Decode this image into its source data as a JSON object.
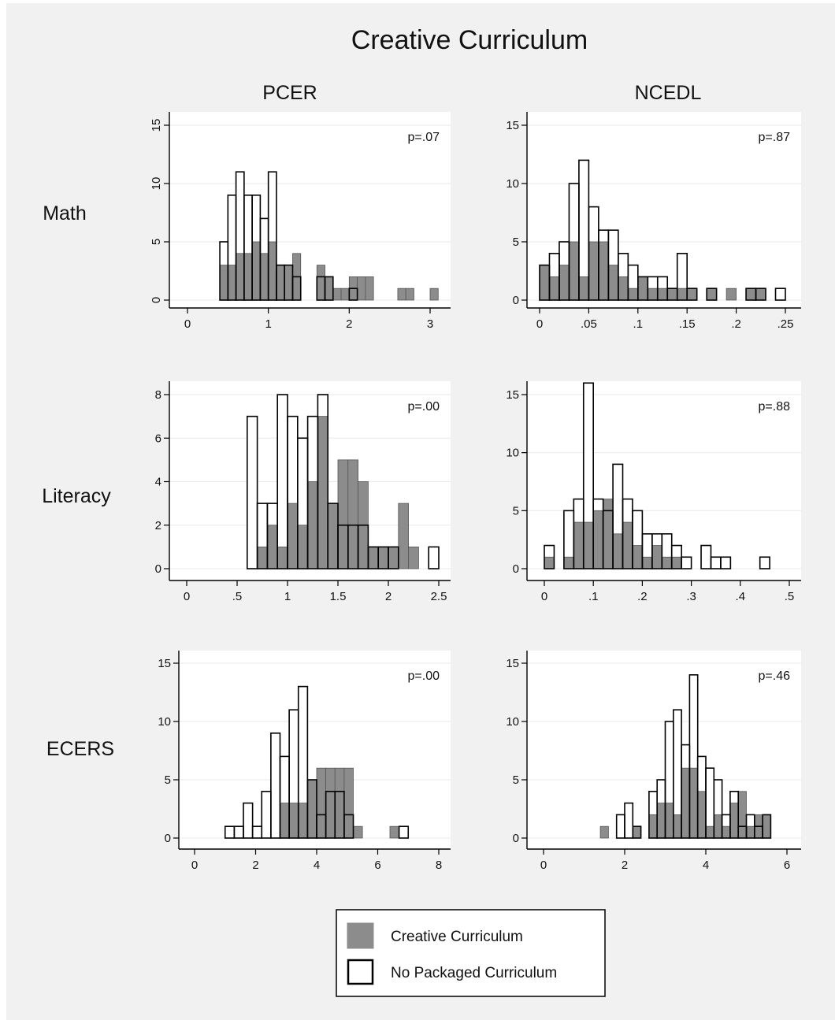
{
  "title": "Creative Curriculum",
  "column_titles": [
    "PCER",
    "NCEDL"
  ],
  "row_labels": [
    "Math",
    "Literacy",
    "ECERS"
  ],
  "colors": {
    "creative": "#8c8c8c",
    "none": "#ffffff",
    "edge": "#000000",
    "plot_bg": "#ffffff"
  },
  "legend": {
    "entries": [
      "Creative Curriculum",
      "No Packaged Curriculum"
    ],
    "position": "bottom-center"
  },
  "chart_data": [
    {
      "type": "bar",
      "row": "Math",
      "column": "PCER",
      "annotation": "p=.07",
      "xlim": [
        0,
        3.1
      ],
      "ylim": [
        0,
        15
      ],
      "y_ticks": [
        0,
        5,
        10,
        15
      ],
      "y_tick_rotated": true,
      "x_ticks": [
        0,
        1,
        2,
        3
      ],
      "x_tick_labels": [
        "0",
        "1",
        "2",
        "3"
      ],
      "bin_width": 0.1,
      "series": [
        {
          "name": "Creative Curriculum",
          "x": [
            0.45,
            0.55,
            0.65,
            0.75,
            0.85,
            0.95,
            1.05,
            1.15,
            1.25,
            1.35,
            1.65,
            1.75,
            1.85,
            1.95,
            2.05,
            2.15,
            2.25,
            2.65,
            2.75,
            3.05
          ],
          "values": [
            3,
            3,
            4,
            4,
            5,
            4,
            5,
            3,
            3,
            4,
            3,
            2,
            1,
            1,
            2,
            2,
            2,
            1,
            1,
            1
          ]
        },
        {
          "name": "No Packaged Curriculum",
          "x": [
            0.45,
            0.55,
            0.65,
            0.75,
            0.85,
            0.95,
            1.05,
            1.15,
            1.25,
            1.35,
            1.65,
            1.75,
            2.05
          ],
          "values": [
            5,
            9,
            11,
            9,
            9,
            7,
            11,
            3,
            3,
            2,
            2,
            2,
            1
          ]
        }
      ]
    },
    {
      "type": "bar",
      "row": "Math",
      "column": "NCEDL",
      "annotation": "p=.87",
      "xlim": [
        0,
        0.25
      ],
      "ylim": [
        0,
        15
      ],
      "y_ticks": [
        0,
        5,
        10,
        15
      ],
      "y_tick_rotated": false,
      "x_ticks": [
        0,
        0.05,
        0.1,
        0.15,
        0.2,
        0.25
      ],
      "x_tick_labels": [
        "0",
        ".05",
        ".1",
        ".15",
        ".2",
        ".25"
      ],
      "bin_width": 0.01,
      "series": [
        {
          "name": "Creative Curriculum",
          "x": [
            0.005,
            0.015,
            0.025,
            0.035,
            0.045,
            0.055,
            0.065,
            0.075,
            0.085,
            0.095,
            0.105,
            0.115,
            0.125,
            0.135,
            0.145,
            0.155,
            0.175,
            0.195,
            0.215,
            0.225
          ],
          "values": [
            3,
            2,
            3,
            5,
            2,
            5,
            5,
            3,
            2,
            1,
            2,
            1,
            1,
            1,
            1,
            1,
            1,
            1,
            1,
            1
          ]
        },
        {
          "name": "No Packaged Curriculum",
          "x": [
            0.005,
            0.015,
            0.025,
            0.035,
            0.045,
            0.055,
            0.065,
            0.075,
            0.085,
            0.095,
            0.105,
            0.115,
            0.125,
            0.135,
            0.145,
            0.155,
            0.175,
            0.215,
            0.225,
            0.245
          ],
          "values": [
            3,
            4,
            5,
            10,
            12,
            8,
            6,
            6,
            4,
            3,
            2,
            2,
            2,
            1,
            4,
            1,
            1,
            1,
            1,
            1
          ]
        }
      ]
    },
    {
      "type": "bar",
      "row": "Literacy",
      "column": "PCER",
      "annotation": "p=.00",
      "xlim": [
        0,
        2.5
      ],
      "ylim": [
        0,
        8
      ],
      "y_ticks": [
        0,
        2,
        4,
        6,
        8
      ],
      "y_tick_rotated": false,
      "x_ticks": [
        0,
        0.5,
        1,
        1.5,
        2,
        2.5
      ],
      "x_tick_labels": [
        "0",
        ".5",
        "1",
        "1.5",
        "2",
        "2.5"
      ],
      "bin_width": 0.1,
      "series": [
        {
          "name": "Creative Curriculum",
          "x": [
            0.75,
            0.85,
            0.95,
            1.05,
            1.15,
            1.25,
            1.35,
            1.45,
            1.55,
            1.65,
            1.75,
            1.85,
            1.95,
            2.05,
            2.15,
            2.25
          ],
          "values": [
            1,
            2,
            1,
            3,
            2,
            4,
            7,
            3,
            5,
            5,
            4,
            1,
            1,
            1,
            3,
            1
          ]
        },
        {
          "name": "No Packaged Curriculum",
          "x": [
            0.65,
            0.75,
            0.85,
            0.95,
            1.05,
            1.15,
            1.25,
            1.35,
            1.45,
            1.55,
            1.65,
            1.75,
            1.85,
            1.95,
            2.05,
            2.45
          ],
          "values": [
            7,
            3,
            3,
            8,
            7,
            6,
            7,
            8,
            3,
            2,
            2,
            2,
            1,
            1,
            1,
            1
          ]
        }
      ]
    },
    {
      "type": "bar",
      "row": "Literacy",
      "column": "NCEDL",
      "annotation": "p=.88",
      "xlim": [
        0,
        0.5
      ],
      "ylim": [
        0,
        16
      ],
      "y_ticks": [
        0,
        5,
        10,
        15
      ],
      "y_tick_rotated": false,
      "x_ticks": [
        0,
        0.1,
        0.2,
        0.3,
        0.4,
        0.5
      ],
      "x_tick_labels": [
        "0",
        ".1",
        ".2",
        ".3",
        ".4",
        ".5"
      ],
      "bin_width": 0.02,
      "series": [
        {
          "name": "Creative Curriculum",
          "x": [
            0.01,
            0.05,
            0.07,
            0.09,
            0.11,
            0.13,
            0.15,
            0.17,
            0.19,
            0.21,
            0.23,
            0.25,
            0.27
          ],
          "values": [
            1,
            1,
            4,
            4,
            5,
            6,
            3,
            4,
            2,
            1,
            2,
            1,
            1
          ]
        },
        {
          "name": "No Packaged Curriculum",
          "x": [
            0.01,
            0.05,
            0.07,
            0.09,
            0.11,
            0.13,
            0.15,
            0.17,
            0.19,
            0.21,
            0.23,
            0.25,
            0.27,
            0.29,
            0.33,
            0.35,
            0.37,
            0.45
          ],
          "values": [
            2,
            5,
            6,
            16,
            6,
            5,
            9,
            6,
            5,
            3,
            3,
            3,
            2,
            1,
            2,
            1,
            1,
            1
          ]
        }
      ]
    },
    {
      "type": "bar",
      "row": "ECERS",
      "column": "PCER",
      "annotation": "p=.00",
      "xlim": [
        0,
        8
      ],
      "ylim": [
        0,
        15
      ],
      "y_ticks": [
        0,
        5,
        10,
        15
      ],
      "y_tick_rotated": false,
      "x_ticks": [
        0,
        2,
        4,
        6,
        8
      ],
      "x_tick_labels": [
        "0",
        "2",
        "4",
        "6",
        "8"
      ],
      "bin_width": 0.3,
      "series": [
        {
          "name": "Creative Curriculum",
          "x": [
            2.95,
            3.25,
            3.55,
            3.85,
            4.15,
            4.45,
            4.75,
            5.05,
            5.35,
            6.55
          ],
          "values": [
            3,
            3,
            3,
            5,
            6,
            6,
            6,
            6,
            1,
            1
          ]
        },
        {
          "name": "No Packaged Curriculum",
          "x": [
            1.15,
            1.45,
            1.75,
            2.05,
            2.35,
            2.65,
            2.95,
            3.25,
            3.55,
            3.85,
            4.15,
            4.45,
            4.75,
            5.05,
            6.85
          ],
          "values": [
            1,
            1,
            3,
            1,
            4,
            9,
            7,
            11,
            13,
            5,
            2,
            4,
            4,
            2,
            1
          ]
        }
      ]
    },
    {
      "type": "bar",
      "row": "ECERS",
      "column": "NCEDL",
      "annotation": "p=.46",
      "xlim": [
        0,
        6
      ],
      "ylim": [
        0,
        15
      ],
      "y_ticks": [
        0,
        5,
        10,
        15
      ],
      "y_tick_rotated": false,
      "x_ticks": [
        0,
        2,
        4,
        6
      ],
      "x_tick_labels": [
        "0",
        "2",
        "4",
        "6"
      ],
      "bin_width": 0.2,
      "series": [
        {
          "name": "Creative Curriculum",
          "x": [
            1.5,
            2.3,
            2.7,
            2.9,
            3.1,
            3.3,
            3.5,
            3.7,
            3.9,
            4.1,
            4.3,
            4.5,
            4.7,
            4.9,
            5.1,
            5.3,
            5.5
          ],
          "values": [
            1,
            1,
            2,
            3,
            3,
            2,
            6,
            6,
            4,
            1,
            2,
            1,
            3,
            4,
            1,
            2,
            2
          ]
        },
        {
          "name": "No Packaged Curriculum",
          "x": [
            1.9,
            2.1,
            2.3,
            2.7,
            2.9,
            3.1,
            3.3,
            3.5,
            3.7,
            3.9,
            4.1,
            4.3,
            4.5,
            4.7,
            4.9,
            5.1,
            5.3,
            5.5
          ],
          "values": [
            2,
            3,
            1,
            4,
            5,
            10,
            11,
            8,
            14,
            7,
            6,
            5,
            2,
            4,
            1,
            2,
            1,
            2
          ]
        }
      ]
    }
  ]
}
